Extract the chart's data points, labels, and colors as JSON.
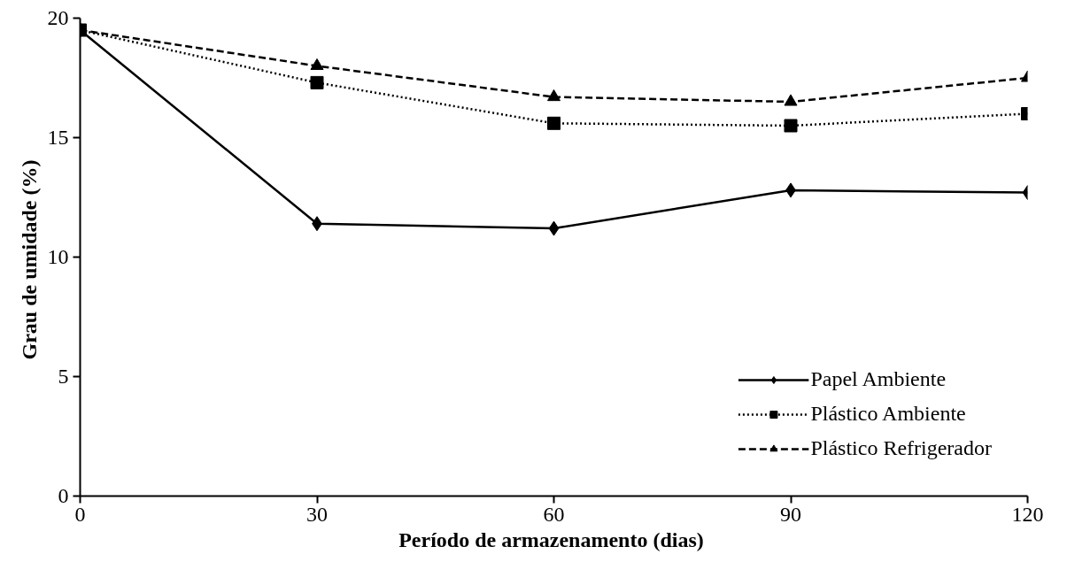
{
  "chart_data": {
    "type": "line",
    "xlabel": "Período de armazenamento  (dias)",
    "ylabel": "Grau de umidade  (%)",
    "x": [
      0,
      30,
      60,
      90,
      120
    ],
    "series": [
      {
        "name": "Papel Ambiente",
        "color": "#000000",
        "marker": "diamond",
        "line_style": "solid",
        "values": [
          19.5,
          11.4,
          11.2,
          12.8,
          12.7
        ]
      },
      {
        "name": "Plástico Ambiente",
        "color": "#000000",
        "marker": "square",
        "line_style": "dotted",
        "values": [
          19.5,
          17.3,
          15.6,
          15.5,
          16.0
        ]
      },
      {
        "name": "Plástico Refrigerador",
        "color": "#000000",
        "marker": "triangle",
        "line_style": "dashed",
        "values": [
          19.5,
          18.0,
          16.7,
          16.5,
          17.5
        ]
      }
    ],
    "xlim": [
      0,
      120
    ],
    "xticks": [
      0,
      30,
      60,
      90,
      120
    ],
    "ylim": [
      0,
      20
    ],
    "yticks": [
      0,
      5,
      10,
      15,
      20
    ],
    "grid": false,
    "legend": "bottom right"
  }
}
